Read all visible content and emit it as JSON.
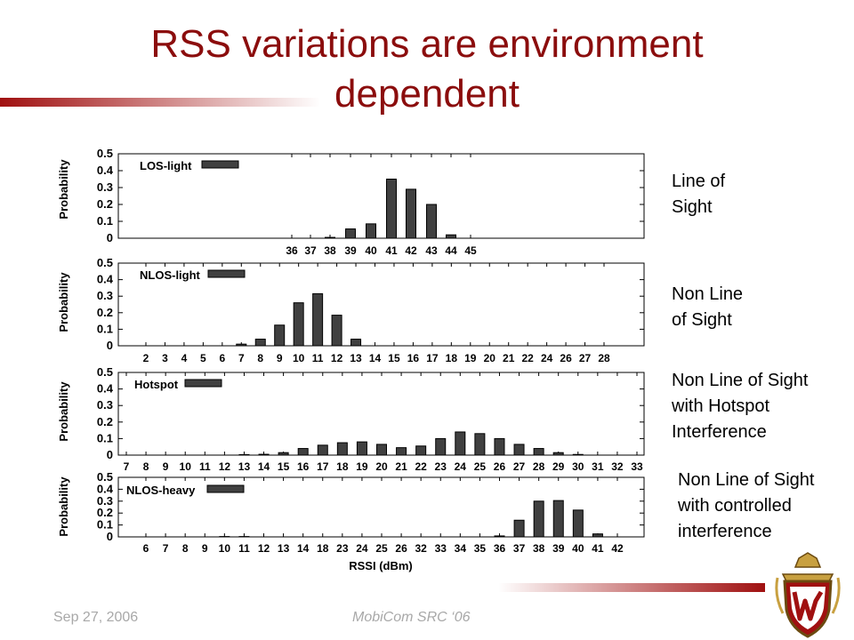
{
  "title": "RSS variations are environment dependent",
  "footer": {
    "date": "Sep 27, 2006",
    "conference": "MobiCom SRC ‘06"
  },
  "descriptions": [
    "Line of\nSight",
    "Non Line\nof Sight",
    "Non Line of Sight\nwith Hotspot\nInterference",
    "Non Line of Sight\nwith controlled\ninterference"
  ],
  "colors": {
    "accent": "#8b0d0d",
    "bar": "#404040"
  },
  "logo": "uw-crest-icon",
  "chart_data": [
    {
      "type": "bar",
      "legend": "LOS-light",
      "ylabel": "Probability",
      "xlabel": "",
      "ylim": [
        0,
        0.5
      ],
      "yticks": [
        "0",
        "0.1",
        "0.2",
        "0.3",
        "0.4",
        "0.5"
      ],
      "categories": [
        "36",
        "37",
        "38",
        "39",
        "40",
        "41",
        "42",
        "43",
        "44",
        "45"
      ],
      "values": [
        0.0,
        0.0,
        0.005,
        0.055,
        0.085,
        0.35,
        0.29,
        0.2,
        0.02,
        0.0
      ]
    },
    {
      "type": "bar",
      "legend": "NLOS-light",
      "ylabel": "Probability",
      "xlabel": "",
      "ylim": [
        0,
        0.5
      ],
      "yticks": [
        "0",
        "0.1",
        "0.2",
        "0.3",
        "0.4",
        "0.5"
      ],
      "categories": [
        "2",
        "3",
        "4",
        "5",
        "6",
        "7",
        "8",
        "9",
        "10",
        "11",
        "12",
        "13",
        "14",
        "15",
        "16",
        "17",
        "18",
        "19",
        "20",
        "21",
        "22",
        "24",
        "26",
        "27",
        "28"
      ],
      "values": [
        0.0,
        0.0,
        0.0,
        0.0,
        0.0,
        0.01,
        0.04,
        0.125,
        0.26,
        0.315,
        0.185,
        0.04,
        0.0,
        0.0,
        0.0,
        0.0,
        0.0,
        0.0,
        0.0,
        0.0,
        0.0,
        0.0,
        0.0,
        0.0,
        0.0
      ]
    },
    {
      "type": "bar",
      "legend": "Hotspot",
      "ylabel": "Probability",
      "xlabel": "",
      "ylim": [
        0,
        0.5
      ],
      "yticks": [
        "0",
        "0.1",
        "0.2",
        "0.3",
        "0.4",
        "0.5"
      ],
      "categories": [
        "7",
        "8",
        "9",
        "10",
        "11",
        "12",
        "13",
        "14",
        "15",
        "16",
        "17",
        "18",
        "19",
        "20",
        "21",
        "22",
        "23",
        "24",
        "25",
        "26",
        "27",
        "28",
        "29",
        "30",
        "31",
        "32",
        "33"
      ],
      "values": [
        0.0,
        0.0,
        0.0,
        0.0,
        0.0,
        0.0,
        0.003,
        0.005,
        0.015,
        0.04,
        0.06,
        0.075,
        0.08,
        0.065,
        0.045,
        0.055,
        0.1,
        0.14,
        0.13,
        0.1,
        0.065,
        0.04,
        0.015,
        0.004,
        0.0,
        0.0,
        0.0
      ]
    },
    {
      "type": "bar",
      "legend": "NLOS-heavy",
      "ylabel": "Probability",
      "xlabel": "RSSI (dBm)",
      "ylim": [
        0,
        0.5
      ],
      "yticks": [
        "0",
        "0.1",
        "0.2",
        "0.3",
        "0.4",
        "0.5"
      ],
      "categories": [
        "6",
        "7",
        "8",
        "9",
        "10",
        "11",
        "12",
        "13",
        "14",
        "18",
        "23",
        "24",
        "25",
        "26",
        "32",
        "33",
        "34",
        "35",
        "36",
        "37",
        "38",
        "39",
        "40",
        "41",
        "42"
      ],
      "values": [
        0.0,
        0.0,
        0.0,
        0.0,
        0.003,
        0.003,
        0.0,
        0.0,
        0.0,
        0.0,
        0.0,
        0.0,
        0.0,
        0.0,
        0.0,
        0.0,
        0.0,
        0.0,
        0.008,
        0.14,
        0.3,
        0.305,
        0.225,
        0.025,
        0.0
      ]
    }
  ]
}
